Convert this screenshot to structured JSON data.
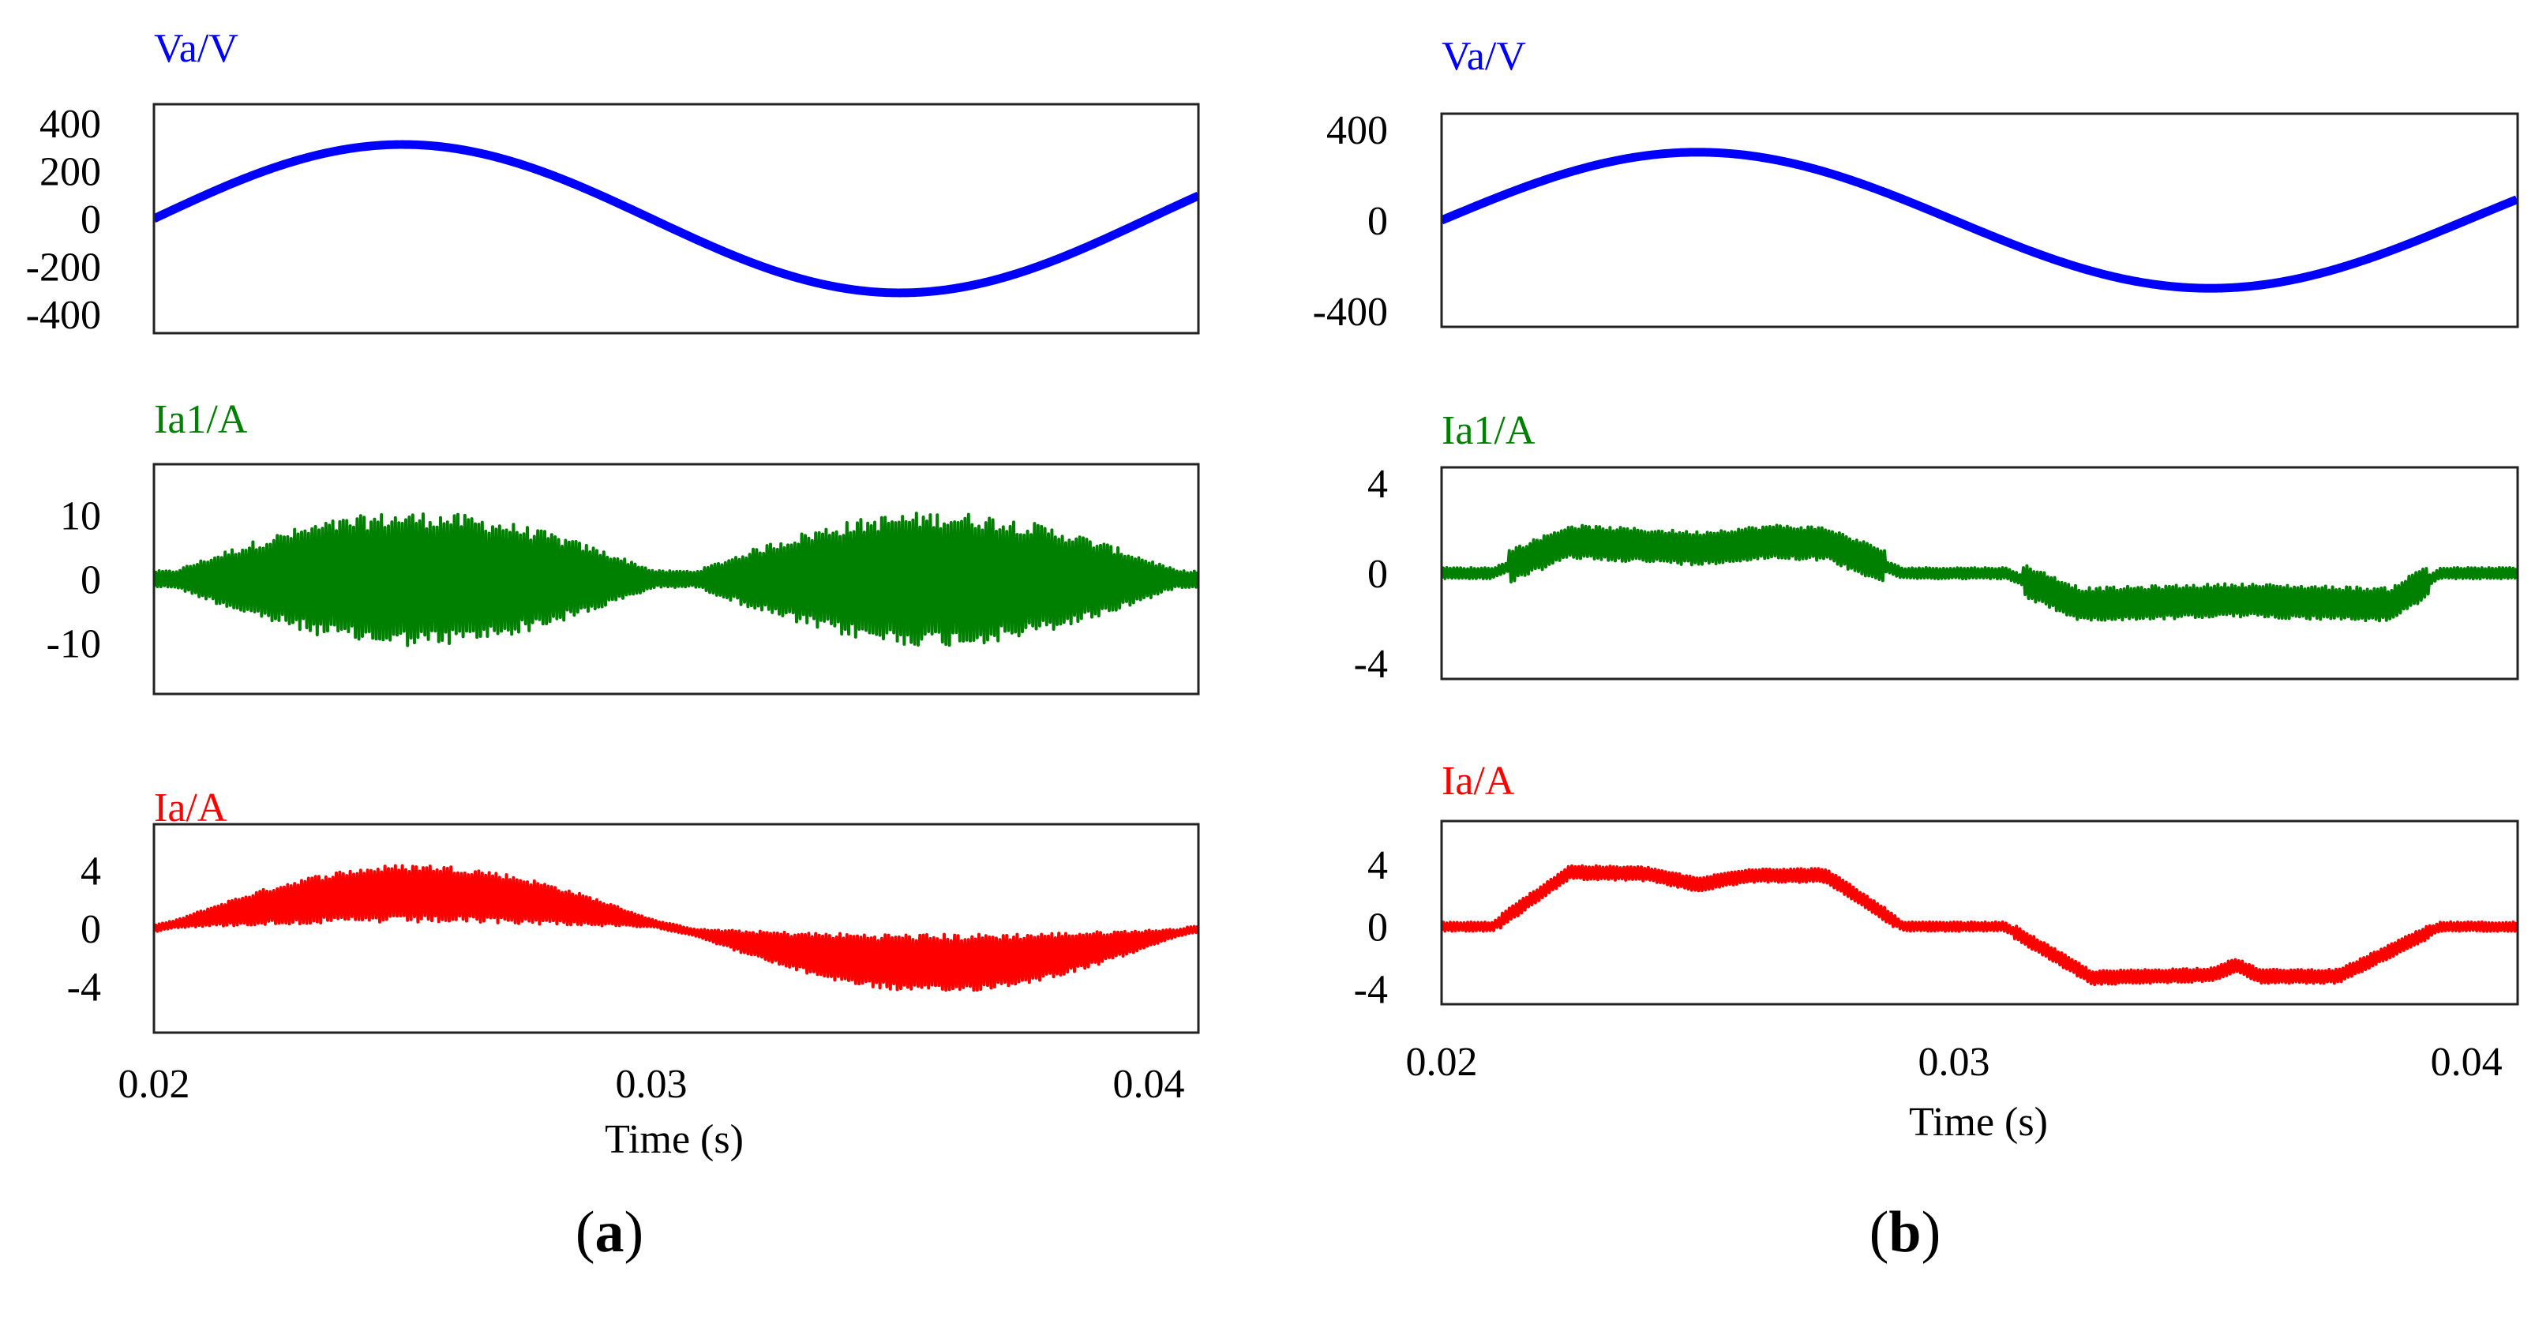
{
  "chart_data": [
    {
      "type": "line",
      "caption_open": "(",
      "caption_letter": "a",
      "caption_close": ")",
      "xlabel": "Time (s)",
      "xlim": [
        0.02,
        0.041
      ],
      "xticks": [
        0.02,
        0.03,
        0.04
      ],
      "xtick_labels": [
        "0.02",
        "0.03",
        "0.04"
      ],
      "subplots": [
        {
          "title": "Va/V",
          "color": "#0000ff",
          "ylim": [
            -480,
            480
          ],
          "yticks": [
            400,
            200,
            0,
            -200,
            -400
          ],
          "ytick_labels": [
            "400",
            "200",
            "0",
            "-200",
            "-400"
          ],
          "signal": {
            "kind": "sine",
            "amplitude": 311,
            "frequency_hz": 50
          }
        },
        {
          "title": "Ia1/A",
          "color": "#008000",
          "ylim": [
            -18,
            18
          ],
          "yticks": [
            10,
            0,
            -10
          ],
          "ytick_labels": [
            "10",
            "0",
            "-10"
          ],
          "signal": {
            "kind": "modulated",
            "center_amplitude": 0,
            "ripple_amplitude": 10.5,
            "ripple_min": 1.3,
            "envelope_half_period_s": 0.0105
          }
        },
        {
          "title": "Ia/A",
          "color": "#ff0000",
          "ylim": [
            -7.2,
            7.2
          ],
          "yticks": [
            4,
            0,
            -4
          ],
          "ytick_labels": [
            "4",
            "0",
            "-4"
          ],
          "signal": {
            "kind": "modulated",
            "center_amplitude": 2.4,
            "ripple_amplitude": 2.0,
            "ripple_min": 0.25,
            "envelope_half_period_s": 0.0105
          }
        }
      ]
    },
    {
      "type": "line",
      "caption_open": "(",
      "caption_letter": "b",
      "caption_close": ")",
      "xlabel": "Time (s)",
      "xlim": [
        0.02,
        0.041
      ],
      "xticks": [
        0.02,
        0.03,
        0.04
      ],
      "xtick_labels": [
        "0.02",
        "0.03",
        "0.04"
      ],
      "subplots": [
        {
          "title": "Va/V",
          "color": "#0000ff",
          "ylim": [
            -470,
            470
          ],
          "yticks": [
            400,
            0,
            -400
          ],
          "ytick_labels": [
            "400",
            "0",
            "-400"
          ],
          "signal": {
            "kind": "sine",
            "amplitude": 300,
            "frequency_hz": 50
          }
        },
        {
          "title": "Ia1/A",
          "color": "#008000",
          "ylim": [
            -4.7,
            4.7
          ],
          "yticks": [
            4,
            0,
            -4
          ],
          "ytick_labels": [
            "4",
            "0",
            "-4"
          ],
          "signal": {
            "kind": "piecewise",
            "ripple": 0.75,
            "idle_ripple": 0.25,
            "points": [
              [
                0.02,
                0
              ],
              [
                0.021,
                0
              ],
              [
                0.0225,
                1.4
              ],
              [
                0.025,
                1.1
              ],
              [
                0.0265,
                1.4
              ],
              [
                0.0275,
                1.3
              ],
              [
                0.029,
                0
              ],
              [
                0.031,
                0
              ],
              [
                0.0325,
                -1.4
              ],
              [
                0.0355,
                -1.2
              ],
              [
                0.0385,
                -1.4
              ],
              [
                0.0395,
                0
              ],
              [
                0.041,
                0
              ]
            ]
          }
        },
        {
          "title": "Ia/A",
          "color": "#ff0000",
          "ylim": [
            -5,
            6.8
          ],
          "yticks": [
            4,
            0,
            -4
          ],
          "ytick_labels": [
            "4",
            "0",
            "-4"
          ],
          "signal": {
            "kind": "piecewise",
            "ripple": 0.45,
            "idle_ripple": 0.3,
            "points": [
              [
                0.02,
                0
              ],
              [
                0.021,
                0
              ],
              [
                0.0225,
                3.5
              ],
              [
                0.024,
                3.4
              ],
              [
                0.025,
                2.7
              ],
              [
                0.026,
                3.3
              ],
              [
                0.0275,
                3.3
              ],
              [
                0.029,
                0
              ],
              [
                0.031,
                0
              ],
              [
                0.0327,
                -3.3
              ],
              [
                0.035,
                -3.1
              ],
              [
                0.0355,
                -2.5
              ],
              [
                0.036,
                -3.2
              ],
              [
                0.0375,
                -3.2
              ],
              [
                0.0395,
                0
              ],
              [
                0.041,
                0
              ]
            ]
          }
        }
      ]
    }
  ]
}
